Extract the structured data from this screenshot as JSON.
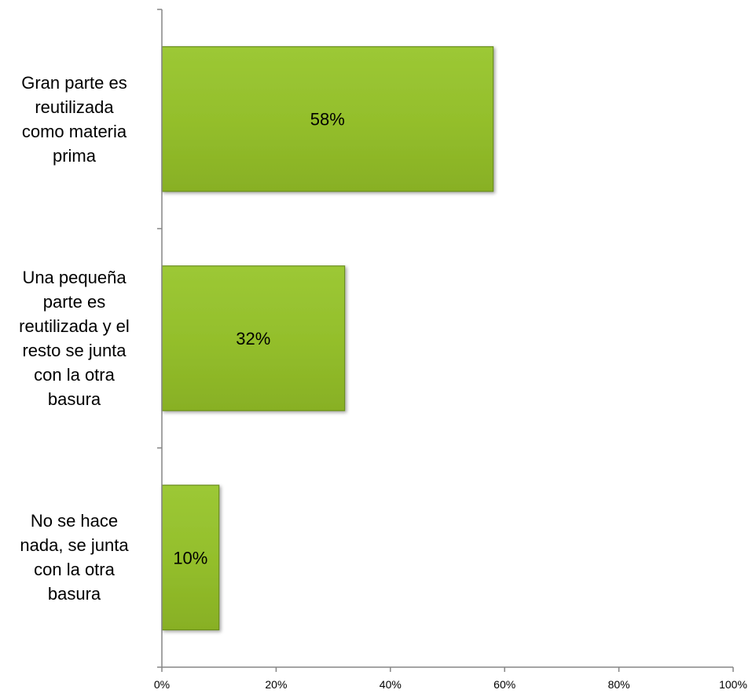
{
  "chart_data": {
    "type": "bar",
    "orientation": "horizontal",
    "categories": [
      [
        "Gran parte es",
        "reutilizada",
        "como materia",
        "prima"
      ],
      [
        "Una pequeña",
        "parte es",
        "reutilizada y el",
        "resto se junta",
        "con la otra",
        "basura"
      ],
      [
        "No se hace",
        "nada, se junta",
        "con la otra",
        "basura"
      ]
    ],
    "values": [
      58,
      32,
      10
    ],
    "data_labels": [
      "58%",
      "32%",
      "10%"
    ],
    "xlim": [
      0,
      100
    ],
    "x_ticks": [
      0,
      20,
      40,
      60,
      80,
      100
    ],
    "x_tick_labels": [
      "0%",
      "20%",
      "40%",
      "60%",
      "80%",
      "100%"
    ],
    "grid": false,
    "legend": "none",
    "bar_color": "#93be2b",
    "bar_border_color": "#6b8e1f"
  }
}
